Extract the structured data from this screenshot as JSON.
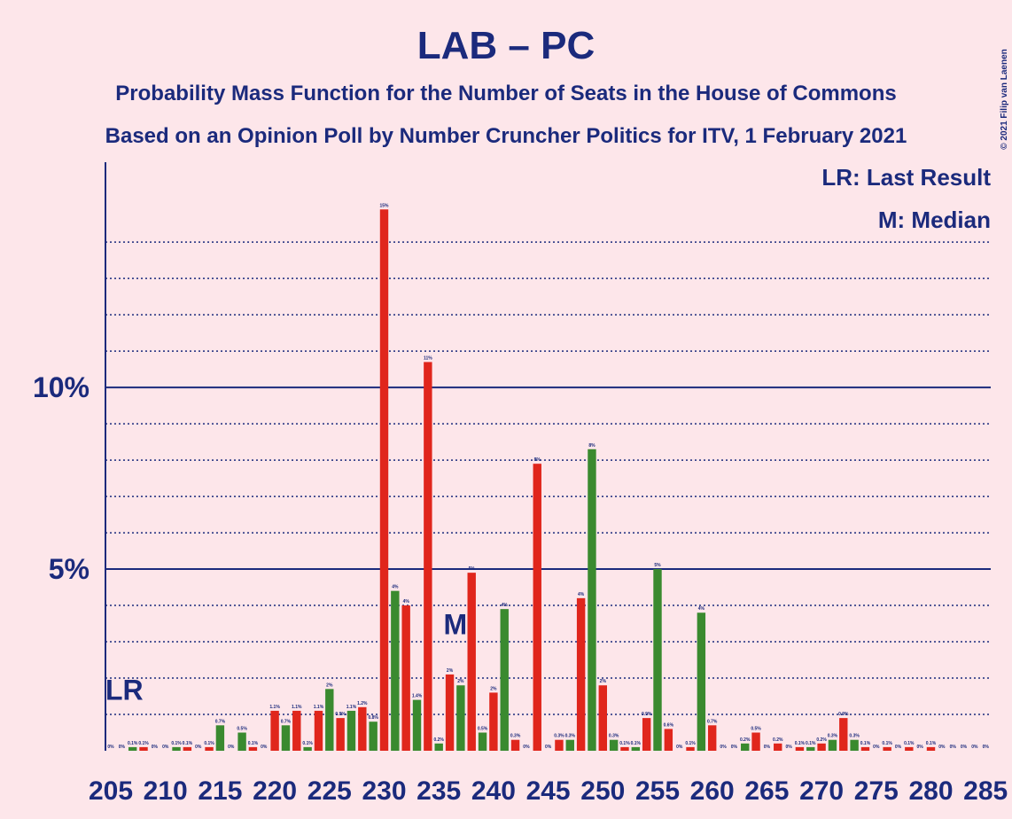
{
  "chart_data": {
    "type": "bar",
    "title": "LAB – PC",
    "subtitle": "Probability Mass Function for the Number of Seats in the House of Commons",
    "subtitle2": "Based on an Opinion Poll by Number Cruncher Politics for ITV, 1 February 2021",
    "copyright": "© 2021 Filip van Laenen",
    "legend": [
      "LR: Last Result",
      "M: Median"
    ],
    "annotations": [
      {
        "text": "LR",
        "x": 205,
        "y": 1.7
      },
      {
        "text": "M",
        "x": 237,
        "y": 3.5
      }
    ],
    "categories": [
      205,
      null,
      null,
      null,
      null,
      210,
      null,
      null,
      null,
      null,
      215,
      null,
      null,
      null,
      null,
      220,
      null,
      null,
      null,
      null,
      225,
      null,
      null,
      null,
      null,
      230,
      null,
      null,
      null,
      null,
      235,
      null,
      null,
      null,
      null,
      240,
      null,
      null,
      null,
      null,
      245,
      null,
      null,
      null,
      null,
      250,
      null,
      null,
      null,
      null,
      255,
      null,
      null,
      null,
      null,
      260,
      null,
      null,
      null,
      null,
      265,
      null,
      null,
      null,
      null,
      270,
      null,
      null,
      null,
      null,
      275,
      null,
      null,
      null,
      null,
      280,
      null,
      null,
      null,
      null,
      285
    ],
    "values": [
      0,
      0,
      0.1,
      0.1,
      0,
      0,
      0.1,
      0.1,
      0,
      0.1,
      0.7,
      0,
      0.5,
      0.1,
      0,
      1.1,
      0.7,
      1.1,
      0.1,
      1.1,
      1.7,
      0.9,
      1.1,
      1.2,
      0.8,
      14.9,
      4.4,
      4.0,
      1.4,
      10.7,
      0.2,
      2.1,
      1.8,
      4.9,
      0.5,
      1.6,
      3.9,
      0.3,
      0,
      7.9,
      0,
      0.3,
      0.3,
      4.2,
      8.3,
      1.8,
      0.3,
      0.1,
      0.1,
      0.9,
      5.0,
      0.6,
      0,
      0.1,
      3.8,
      0.7,
      0,
      0,
      0.2,
      0.5,
      0,
      0.2,
      0,
      0.1,
      0.1,
      0.2,
      0.3,
      0.9,
      0.3,
      0.1,
      0,
      0.1,
      0,
      0.1,
      0,
      0.1,
      0,
      0,
      0,
      0,
      0
    ],
    "value_labels": [
      "0%",
      "0%",
      "0.1%",
      "0.1%",
      "0%",
      "0%",
      "0.1%",
      "0.1%",
      "0%",
      "0.1%",
      "0.7%",
      "0%",
      "0.5%",
      "0.1%",
      "0%",
      "1.1%",
      "0.7%",
      "1.1%",
      "0.1%",
      "1.1%",
      "2%",
      "0.9%",
      "1.1%",
      "1.2%",
      "0.8%",
      "15%",
      "4%",
      "4%",
      "1.4%",
      "11%",
      "0.2%",
      "2%",
      "2%",
      "5%",
      "0.5%",
      "2%",
      "4%",
      "0.3%",
      "0%",
      "8%",
      "0%",
      "0.3%",
      "0.3%",
      "4%",
      "8%",
      "2%",
      "0.3%",
      "0.1%",
      "0.1%",
      "0.9%",
      "5%",
      "0.6%",
      "0%",
      "0.1%",
      "4%",
      "0.7%",
      "0%",
      "0%",
      "0.2%",
      "0.5%",
      "0%",
      "0.2%",
      "0%",
      "0.1%",
      "0.1%",
      "0.2%",
      "0.3%",
      "0.9%",
      "0.3%",
      "0.1%",
      "0%",
      "0.1%",
      "0%",
      "0.1%",
      "0%",
      "0.1%",
      "0%",
      "0%",
      "0%",
      "0%",
      "0%"
    ],
    "bar_colors": [
      "#3a8a2f",
      "#e0261c"
    ],
    "ylim": [
      0,
      16.2
    ],
    "yticks": [
      {
        "value": 5,
        "label": "5%"
      },
      {
        "value": 10,
        "label": "10%"
      }
    ],
    "minor_grid": [
      1,
      2,
      3,
      4,
      6,
      7,
      8,
      9,
      11,
      12,
      13,
      14
    ],
    "grid": true
  }
}
